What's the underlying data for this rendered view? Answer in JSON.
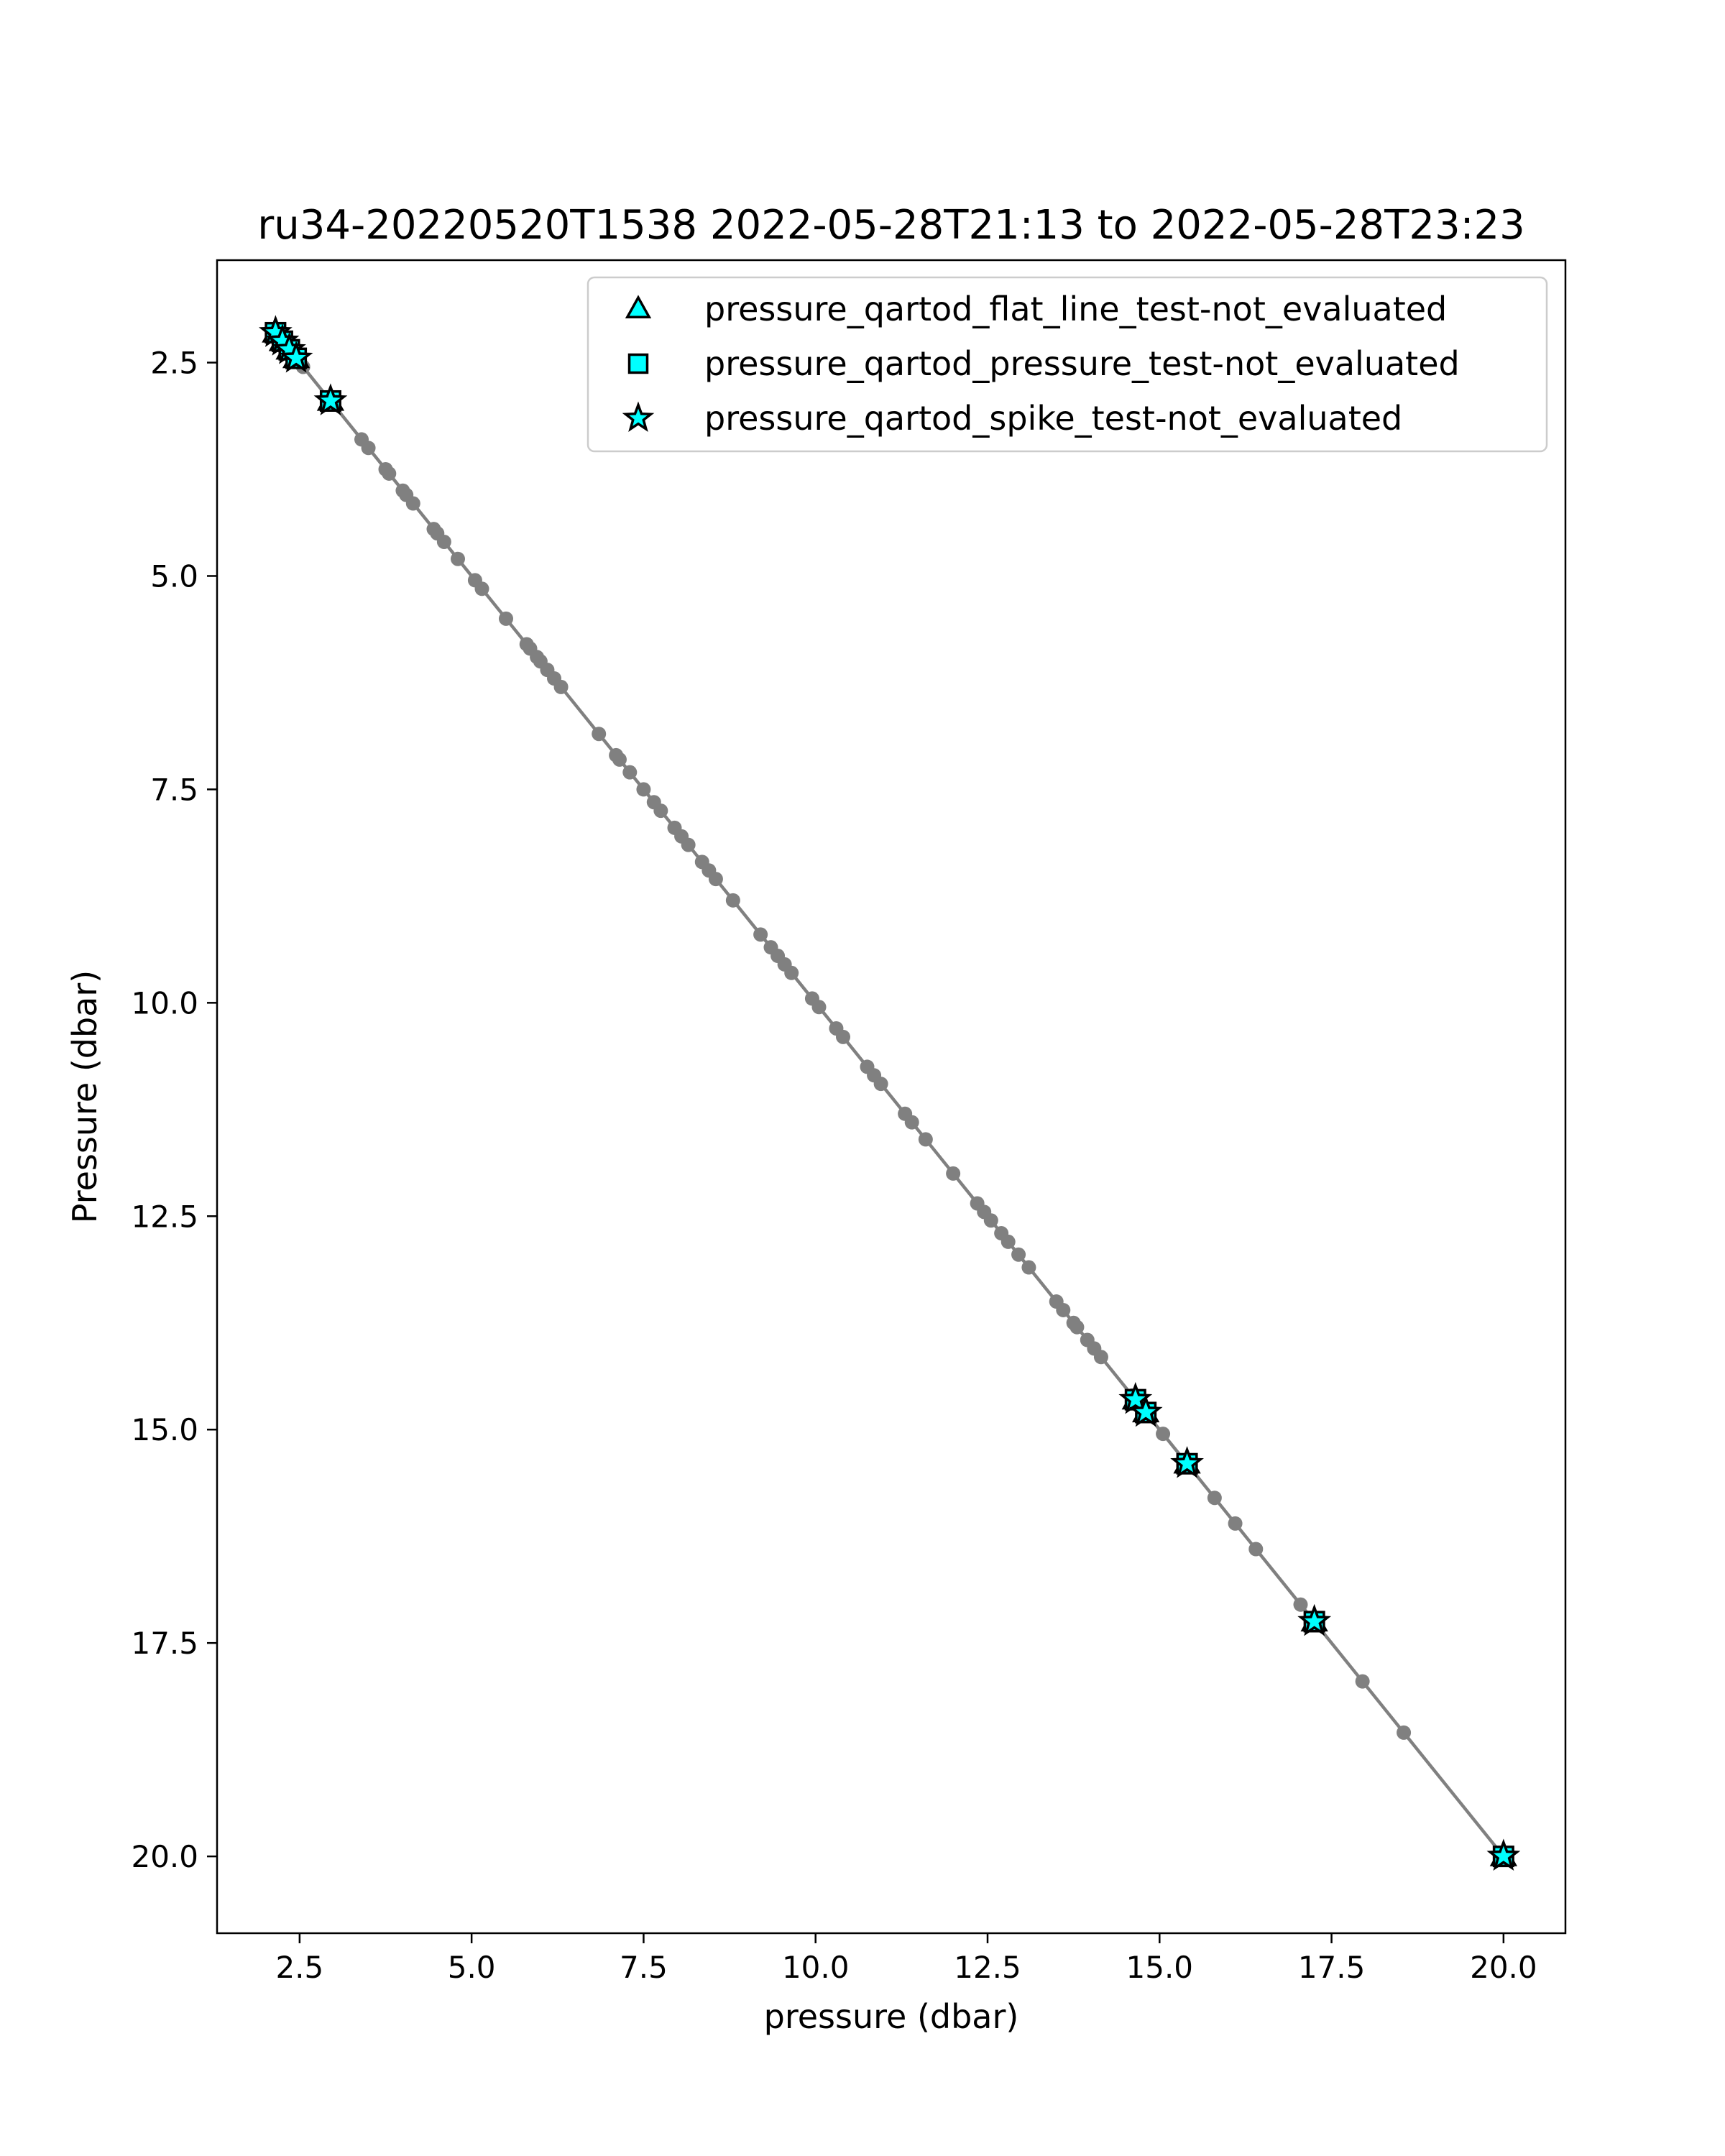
{
  "chart_data": {
    "type": "scatter",
    "title": "ru34-20220520T1538 2022-05-28T21:13 to 2022-05-28T23:23",
    "xlabel": "pressure (dbar)",
    "ylabel": "Pressure (dbar)",
    "xlim": [
      1.3,
      20.9
    ],
    "ylim": [
      20.9,
      1.3
    ],
    "y_inverted": true,
    "x_ticks": [
      2.5,
      5.0,
      7.5,
      10.0,
      12.5,
      15.0,
      17.5,
      20.0
    ],
    "x_tick_labels": [
      "2.5",
      "5.0",
      "7.5",
      "10.0",
      "12.5",
      "15.0",
      "17.5",
      "20.0"
    ],
    "y_ticks": [
      2.5,
      5.0,
      7.5,
      10.0,
      12.5,
      15.0,
      17.5,
      20.0
    ],
    "y_tick_labels": [
      "2.5",
      "5.0",
      "7.5",
      "10.0",
      "12.5",
      "15.0",
      "17.5",
      "20.0"
    ],
    "grid": false,
    "legend_position": "upper-right",
    "profile": {
      "color": "#808080",
      "x": [
        2.15,
        2.25,
        2.35,
        2.45,
        2.55,
        2.95,
        3.4,
        3.5,
        3.75,
        3.8,
        4.0,
        4.05,
        4.15,
        4.45,
        4.5,
        4.6,
        4.8,
        5.05,
        5.15,
        5.5,
        5.8,
        5.85,
        5.95,
        6.0,
        6.1,
        6.2,
        6.3,
        6.85,
        7.1,
        7.15,
        7.3,
        7.5,
        7.65,
        7.75,
        7.95,
        8.05,
        8.15,
        8.35,
        8.45,
        8.55,
        8.8,
        9.2,
        9.35,
        9.45,
        9.55,
        9.65,
        9.95,
        10.05,
        10.3,
        10.4,
        10.75,
        10.85,
        10.95,
        11.3,
        11.4,
        11.6,
        12.0,
        12.35,
        12.45,
        12.55,
        12.7,
        12.8,
        12.95,
        13.1,
        13.5,
        13.6,
        13.75,
        13.8,
        13.95,
        14.05,
        14.15,
        14.6,
        14.7,
        14.8,
        15.05,
        15.4,
        15.8,
        16.1,
        16.4,
        17.05,
        17.25,
        17.95,
        18.55,
        20.0
      ],
      "y": [
        2.15,
        2.25,
        2.35,
        2.45,
        2.55,
        2.95,
        3.4,
        3.5,
        3.75,
        3.8,
        4.0,
        4.05,
        4.15,
        4.45,
        4.5,
        4.6,
        4.8,
        5.05,
        5.15,
        5.5,
        5.8,
        5.85,
        5.95,
        6.0,
        6.1,
        6.2,
        6.3,
        6.85,
        7.1,
        7.15,
        7.3,
        7.5,
        7.65,
        7.75,
        7.95,
        8.05,
        8.15,
        8.35,
        8.45,
        8.55,
        8.8,
        9.2,
        9.35,
        9.45,
        9.55,
        9.65,
        9.95,
        10.05,
        10.3,
        10.4,
        10.75,
        10.85,
        10.95,
        11.3,
        11.4,
        11.6,
        12.0,
        12.35,
        12.45,
        12.55,
        12.7,
        12.8,
        12.95,
        13.1,
        13.5,
        13.6,
        13.75,
        13.8,
        13.95,
        14.05,
        14.15,
        14.6,
        14.7,
        14.8,
        15.05,
        15.4,
        15.8,
        16.1,
        16.4,
        17.05,
        17.25,
        17.95,
        18.55,
        20.0
      ]
    },
    "series": [
      {
        "name": "pressure_qartod_flat_line_test-not_evaluated",
        "marker": "triangle",
        "color": "#00ffff",
        "x": [
          2.15,
          2.25,
          2.35,
          2.45,
          2.95,
          14.65,
          14.8,
          15.4,
          17.25,
          20.0
        ],
        "y": [
          2.15,
          2.25,
          2.35,
          2.45,
          2.95,
          14.65,
          14.8,
          15.4,
          17.25,
          20.0
        ]
      },
      {
        "name": "pressure_qartod_pressure_test-not_evaluated",
        "marker": "square",
        "color": "#00ffff",
        "x": [
          2.15,
          2.25,
          2.35,
          2.45,
          2.95,
          14.65,
          14.8,
          15.4,
          17.25,
          20.0
        ],
        "y": [
          2.15,
          2.25,
          2.35,
          2.45,
          2.95,
          14.65,
          14.8,
          15.4,
          17.25,
          20.0
        ]
      },
      {
        "name": "pressure_qartod_spike_test-not_evaluated",
        "marker": "star",
        "color": "#00ffff",
        "x": [
          2.15,
          2.25,
          2.35,
          2.45,
          2.95,
          14.65,
          14.8,
          15.4,
          17.25,
          20.0
        ],
        "y": [
          2.15,
          2.25,
          2.35,
          2.45,
          2.95,
          14.65,
          14.8,
          15.4,
          17.25,
          20.0
        ]
      }
    ]
  }
}
